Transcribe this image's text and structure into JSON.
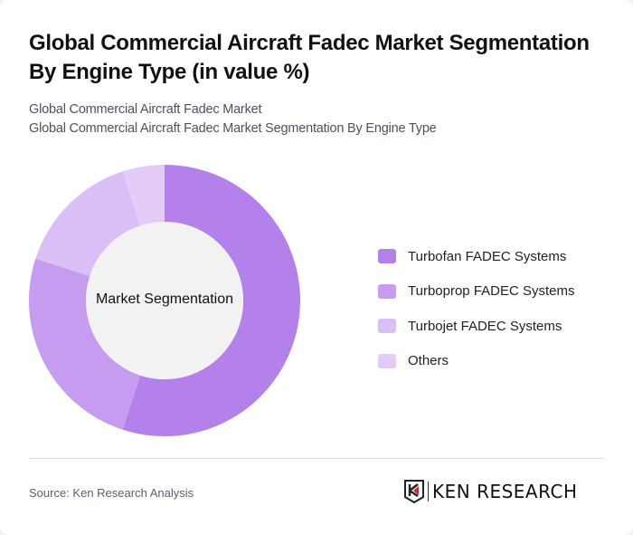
{
  "header": {
    "title": "Global Commercial Aircraft Fadec Market Segmentation By Engine Type (in value %)",
    "subtitle_1": "Global Commercial Aircraft Fadec Market",
    "subtitle_2": "Global Commercial Aircraft Fadec Market Segmentation By Engine Type"
  },
  "chart": {
    "center_label": "Market Segmentation"
  },
  "legend": {
    "items": [
      {
        "label": "Turbofan FADEC Systems",
        "color": "#b480ea"
      },
      {
        "label": "Turboprop FADEC Systems",
        "color": "#c59cef"
      },
      {
        "label": "Turbojet FADEC Systems",
        "color": "#dabff6"
      },
      {
        "label": "Others",
        "color": "#e3cdf8"
      }
    ]
  },
  "footer": {
    "source": "Source: Ken Research Analysis",
    "logo_text": "KEN RESEARCH"
  },
  "chart_data": {
    "type": "pie",
    "subtype": "donut",
    "title": "Global Commercial Aircraft Fadec Market Segmentation By Engine Type (in value %)",
    "categories": [
      "Turbofan FADEC Systems",
      "Turboprop FADEC Systems",
      "Turbojet FADEC Systems",
      "Others"
    ],
    "values": [
      55,
      25,
      15,
      5
    ],
    "colors": [
      "#b480ea",
      "#c59cef",
      "#dabff6",
      "#e3cdf8"
    ],
    "center_label": "Market Segmentation",
    "legend_position": "right"
  }
}
